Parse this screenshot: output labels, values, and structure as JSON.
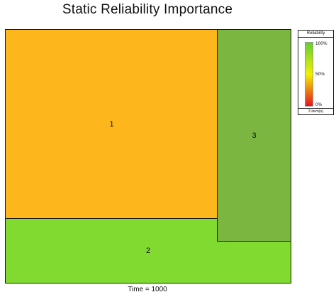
{
  "chart_data": {
    "type": "treemap",
    "title": "Static Reliability Importance",
    "footer": "Time = 1000",
    "items": [
      {
        "label": "1",
        "color": "#FDB71C"
      },
      {
        "label": "2",
        "color": "#80DA2F"
      },
      {
        "label": "3",
        "color": "#7AB640"
      }
    ],
    "legend": {
      "title": "Reliability",
      "ticks": [
        "100%",
        "50%",
        "0%"
      ],
      "gradient_colors": [
        "#66CC33",
        "#F2F200",
        "#E8141C"
      ],
      "count_label": "3 item(s)"
    }
  }
}
